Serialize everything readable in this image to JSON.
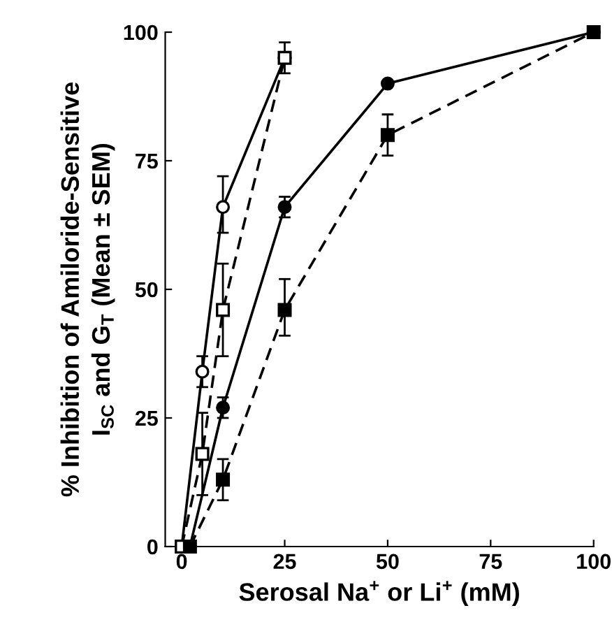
{
  "chart_data": {
    "type": "line",
    "xlabel": "Serosal Na$^{+}$ or Li$^{+}$ (mM)",
    "ylabel": "% Inhibition of Amiloride-Sensitive\nI$_{SC}$ and G$_{T}$ (Mean ± SEM)",
    "xlim": [
      -4,
      100
    ],
    "ylim": [
      0,
      100
    ],
    "xticks": [
      0,
      25,
      50,
      75,
      100
    ],
    "yticks": [
      0,
      25,
      50,
      75,
      100
    ],
    "grid": false,
    "legend": false,
    "series": [
      {
        "color": "#000000",
        "colors": [
          "#ffffff",
          "#ffffff",
          "#ffffff",
          "#ffffff"
        ],
        "marker": "circle",
        "line_style": "solid",
        "x": [
          0,
          5,
          10,
          25
        ],
        "values": [
          0,
          34,
          66,
          95
        ],
        "errors": [
          null,
          3,
          [
            61,
            72
          ],
          null
        ]
      },
      {
        "color": "#000000",
        "colors": [
          "#ffffff",
          "#ffffff",
          "#ffffff",
          "#ffffff"
        ],
        "marker": "square",
        "line_style": "dashed",
        "x": [
          0,
          5,
          10,
          25
        ],
        "values": [
          0,
          18,
          46,
          95
        ],
        "errors": [
          null,
          8,
          [
            37,
            55
          ],
          [
            92,
            98
          ]
        ]
      },
      {
        "color": "#000000",
        "colors": [
          "#000000",
          "#000000",
          "#000000",
          "#000000",
          "#000000"
        ],
        "marker": "circle",
        "line_style": "solid",
        "x": [
          2,
          10,
          25,
          50,
          100
        ],
        "values": [
          0,
          27,
          66,
          90,
          100
        ],
        "errors": [
          null,
          2,
          2,
          null,
          null
        ]
      },
      {
        "color": "#000000",
        "colors": [
          "#000000",
          "#000000",
          "#000000",
          "#000000",
          "#000000"
        ],
        "marker": "square",
        "line_style": "dashed",
        "x": [
          2,
          10,
          25,
          50,
          100
        ],
        "values": [
          0,
          13,
          46,
          80,
          100
        ],
        "errors": [
          null,
          4,
          [
            41,
            52
          ],
          [
            76,
            84
          ],
          null
        ]
      }
    ]
  }
}
